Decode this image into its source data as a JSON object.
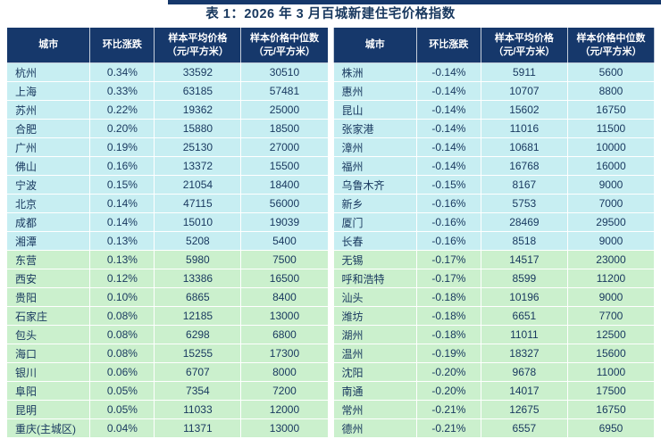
{
  "title": "表 1：2026 年 3 月百城新建住宅价格指数",
  "colors": {
    "header_bg": "#16386b",
    "header_text": "#ffffff",
    "row_cyan": "#c7eef2",
    "row_green": "#cbf0cd",
    "text": "#17375e",
    "top_bar": "#16386b"
  },
  "columns": [
    {
      "label": "城市",
      "sub": ""
    },
    {
      "label": "环比涨跌",
      "sub": ""
    },
    {
      "label": "样本平均价格",
      "sub": "（元/平方米）"
    },
    {
      "label": "样本价格中位数",
      "sub": "（元/平方米）"
    }
  ],
  "tables": [
    {
      "rows": [
        {
          "city": "杭州",
          "change": "0.34%",
          "avg": "33592",
          "median": "30510",
          "tone": "cyan"
        },
        {
          "city": "上海",
          "change": "0.33%",
          "avg": "63185",
          "median": "57481",
          "tone": "cyan"
        },
        {
          "city": "苏州",
          "change": "0.22%",
          "avg": "19362",
          "median": "25000",
          "tone": "cyan"
        },
        {
          "city": "合肥",
          "change": "0.20%",
          "avg": "15880",
          "median": "18500",
          "tone": "cyan"
        },
        {
          "city": "广州",
          "change": "0.19%",
          "avg": "25130",
          "median": "27000",
          "tone": "cyan"
        },
        {
          "city": "佛山",
          "change": "0.16%",
          "avg": "13372",
          "median": "15500",
          "tone": "cyan"
        },
        {
          "city": "宁波",
          "change": "0.15%",
          "avg": "21054",
          "median": "18400",
          "tone": "cyan"
        },
        {
          "city": "北京",
          "change": "0.14%",
          "avg": "47115",
          "median": "56000",
          "tone": "cyan"
        },
        {
          "city": "成都",
          "change": "0.14%",
          "avg": "15010",
          "median": "19039",
          "tone": "cyan"
        },
        {
          "city": "湘潭",
          "change": "0.13%",
          "avg": "5208",
          "median": "5400",
          "tone": "cyan"
        },
        {
          "city": "东营",
          "change": "0.13%",
          "avg": "5980",
          "median": "7500",
          "tone": "green"
        },
        {
          "city": "西安",
          "change": "0.12%",
          "avg": "13386",
          "median": "16500",
          "tone": "green"
        },
        {
          "city": "贵阳",
          "change": "0.10%",
          "avg": "6865",
          "median": "8400",
          "tone": "green"
        },
        {
          "city": "石家庄",
          "change": "0.08%",
          "avg": "12185",
          "median": "13000",
          "tone": "green"
        },
        {
          "city": "包头",
          "change": "0.08%",
          "avg": "6298",
          "median": "6800",
          "tone": "green"
        },
        {
          "city": "海口",
          "change": "0.08%",
          "avg": "15255",
          "median": "17300",
          "tone": "green"
        },
        {
          "city": "银川",
          "change": "0.06%",
          "avg": "6707",
          "median": "8000",
          "tone": "green"
        },
        {
          "city": "阜阳",
          "change": "0.05%",
          "avg": "7354",
          "median": "7200",
          "tone": "green"
        },
        {
          "city": "昆明",
          "change": "0.05%",
          "avg": "11033",
          "median": "12000",
          "tone": "green"
        },
        {
          "city": "重庆(主城区)",
          "change": "0.04%",
          "avg": "11371",
          "median": "13000",
          "tone": "green"
        }
      ]
    },
    {
      "rows": [
        {
          "city": "株洲",
          "change": "-0.14%",
          "avg": "5911",
          "median": "5600",
          "tone": "cyan"
        },
        {
          "city": "惠州",
          "change": "-0.14%",
          "avg": "10707",
          "median": "8800",
          "tone": "cyan"
        },
        {
          "city": "昆山",
          "change": "-0.14%",
          "avg": "15602",
          "median": "16750",
          "tone": "cyan"
        },
        {
          "city": "张家港",
          "change": "-0.14%",
          "avg": "11016",
          "median": "11500",
          "tone": "cyan"
        },
        {
          "city": "漳州",
          "change": "-0.14%",
          "avg": "10681",
          "median": "10000",
          "tone": "cyan"
        },
        {
          "city": "福州",
          "change": "-0.14%",
          "avg": "16768",
          "median": "16000",
          "tone": "cyan"
        },
        {
          "city": "乌鲁木齐",
          "change": "-0.15%",
          "avg": "8167",
          "median": "9000",
          "tone": "cyan"
        },
        {
          "city": "新乡",
          "change": "-0.16%",
          "avg": "5753",
          "median": "7000",
          "tone": "cyan"
        },
        {
          "city": "厦门",
          "change": "-0.16%",
          "avg": "28469",
          "median": "29500",
          "tone": "cyan"
        },
        {
          "city": "长春",
          "change": "-0.16%",
          "avg": "8518",
          "median": "9000",
          "tone": "cyan"
        },
        {
          "city": "无锡",
          "change": "-0.17%",
          "avg": "14517",
          "median": "23000",
          "tone": "green"
        },
        {
          "city": "呼和浩特",
          "change": "-0.17%",
          "avg": "8599",
          "median": "11200",
          "tone": "green"
        },
        {
          "city": "汕头",
          "change": "-0.18%",
          "avg": "10196",
          "median": "9000",
          "tone": "green"
        },
        {
          "city": "潍坊",
          "change": "-0.18%",
          "avg": "6651",
          "median": "7700",
          "tone": "green"
        },
        {
          "city": "湖州",
          "change": "-0.18%",
          "avg": "11011",
          "median": "12500",
          "tone": "green"
        },
        {
          "city": "温州",
          "change": "-0.19%",
          "avg": "18327",
          "median": "15600",
          "tone": "green"
        },
        {
          "city": "沈阳",
          "change": "-0.20%",
          "avg": "9678",
          "median": "11000",
          "tone": "green"
        },
        {
          "city": "南通",
          "change": "-0.20%",
          "avg": "14017",
          "median": "17500",
          "tone": "green"
        },
        {
          "city": "常州",
          "change": "-0.21%",
          "avg": "12675",
          "median": "16750",
          "tone": "green"
        },
        {
          "city": "德州",
          "change": "-0.21%",
          "avg": "6557",
          "median": "6950",
          "tone": "green"
        }
      ]
    }
  ]
}
